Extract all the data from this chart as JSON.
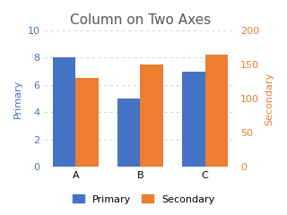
{
  "title": "Column on Two Axes",
  "categories": [
    "A",
    "B",
    "C"
  ],
  "primary_values": [
    8,
    5,
    7
  ],
  "secondary_values": [
    130,
    150,
    165
  ],
  "primary_color": "#4472C4",
  "secondary_color": "#ED7D31",
  "primary_label": "Primary",
  "secondary_label": "Secondary",
  "primary_ylim": [
    0,
    10
  ],
  "secondary_ylim": [
    0,
    200
  ],
  "primary_yticks": [
    0,
    2,
    4,
    6,
    8,
    10
  ],
  "secondary_yticks": [
    0,
    50,
    100,
    150,
    200
  ],
  "title_fontsize": 11,
  "tick_fontsize": 8,
  "label_fontsize": 8,
  "bar_width": 0.35,
  "background_color": "#ffffff",
  "grid_color": "#D0D0D0",
  "title_color": "#595959"
}
